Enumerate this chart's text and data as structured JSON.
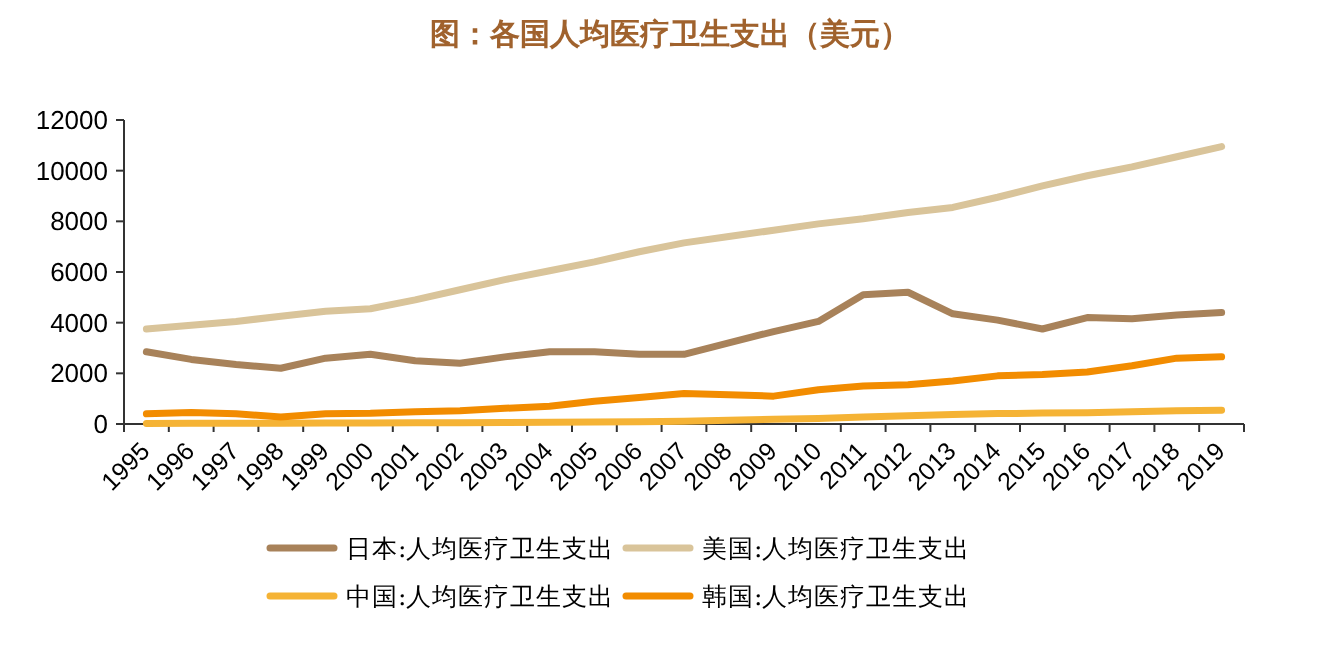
{
  "chart_data": {
    "type": "line",
    "title": "图：各国人均医疗卫生支出（美元）",
    "categories": [
      "1995",
      "1996",
      "1997",
      "1998",
      "1999",
      "2000",
      "2001",
      "2002",
      "2003",
      "2004",
      "2005",
      "2006",
      "2007",
      "2008",
      "2009",
      "2010",
      "2011",
      "2012",
      "2013",
      "2014",
      "2015",
      "2016",
      "2017",
      "2018",
      "2019"
    ],
    "series": [
      {
        "name": "日本:人均医疗卫生支出",
        "color": "#a8825a",
        "values": [
          2850,
          2550,
          2350,
          2200,
          2600,
          2750,
          2500,
          2400,
          2650,
          2850,
          2850,
          2750,
          2750,
          3200,
          3650,
          4050,
          5100,
          5200,
          4350,
          4100,
          3750,
          4200,
          4150,
          4300,
          4400
        ]
      },
      {
        "name": "美国:人均医疗卫生支出",
        "color": "#d9c49a",
        "values": [
          3750,
          3900,
          4050,
          4250,
          4450,
          4550,
          4900,
          5300,
          5700,
          6050,
          6400,
          6800,
          7150,
          7400,
          7650,
          7900,
          8100,
          8350,
          8550,
          8950,
          9400,
          9800,
          10150,
          10550,
          10950
        ]
      },
      {
        "name": "中国:人均医疗卫生支出",
        "color": "#f5b335",
        "values": [
          20,
          25,
          30,
          30,
          35,
          40,
          45,
          50,
          55,
          65,
          75,
          85,
          110,
          150,
          190,
          220,
          280,
          330,
          370,
          410,
          430,
          440,
          480,
          520,
          540
        ]
      },
      {
        "name": "韩国:人均医疗卫生支出",
        "color": "#f28c00",
        "values": [
          400,
          450,
          400,
          280,
          400,
          420,
          480,
          520,
          620,
          700,
          900,
          1050,
          1200,
          1150,
          1100,
          1350,
          1500,
          1550,
          1700,
          1900,
          1950,
          2050,
          2300,
          2600,
          2650
        ]
      }
    ],
    "ylim": [
      0,
      12000
    ],
    "yticks": [
      0,
      2000,
      4000,
      6000,
      8000,
      10000,
      12000
    ],
    "grid": false,
    "legend": "bottom",
    "marker": "none",
    "line_style": "solid"
  }
}
